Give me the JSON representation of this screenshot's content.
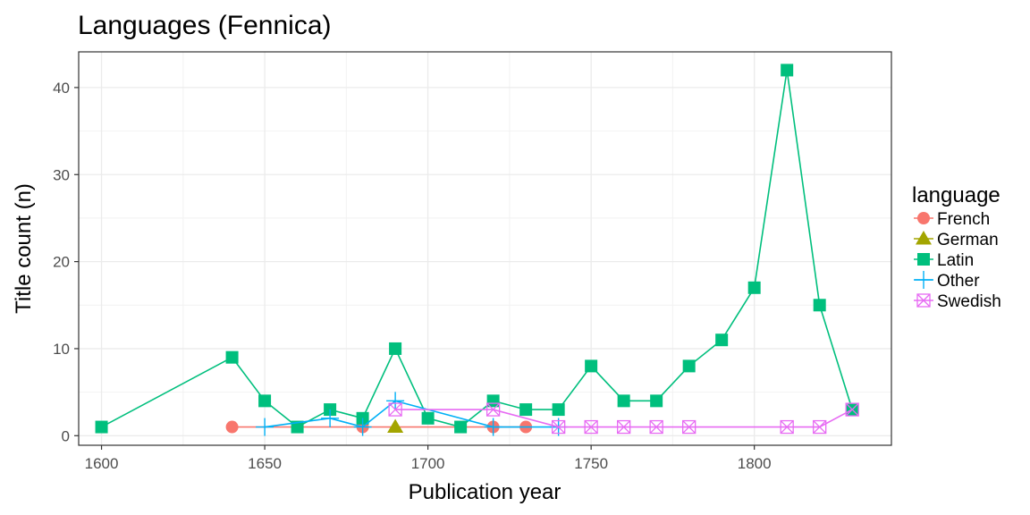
{
  "chart_data": {
    "type": "line",
    "title": "Languages (Fennica)",
    "xlabel": "Publication year",
    "ylabel": "Title count (n)",
    "xlim": [
      1593,
      1842
    ],
    "ylim": [
      -1.1,
      44.1
    ],
    "x_ticks": [
      1600,
      1650,
      1700,
      1750,
      1800
    ],
    "y_ticks": [
      0,
      10,
      20,
      30,
      40
    ],
    "grid": true,
    "legend": {
      "title": "language",
      "position": "right"
    },
    "series": [
      {
        "name": "French",
        "color": "#F8766D",
        "marker": "circle",
        "x": [
          1640,
          1680,
          1720,
          1730
        ],
        "y": [
          1,
          1,
          1,
          1
        ]
      },
      {
        "name": "German",
        "color": "#A3A500",
        "marker": "triangle",
        "x": [
          1690
        ],
        "y": [
          1
        ]
      },
      {
        "name": "Latin",
        "color": "#00BF7D",
        "marker": "square",
        "x": [
          1600,
          1640,
          1650,
          1660,
          1670,
          1680,
          1690,
          1700,
          1710,
          1720,
          1730,
          1740,
          1750,
          1760,
          1770,
          1780,
          1790,
          1800,
          1810,
          1820,
          1830
        ],
        "y": [
          1,
          9,
          4,
          1,
          3,
          2,
          10,
          2,
          1,
          4,
          3,
          3,
          8,
          4,
          4,
          8,
          11,
          17,
          42,
          15,
          3
        ]
      },
      {
        "name": "Other",
        "color": "#00B0F6",
        "marker": "plus",
        "x": [
          1650,
          1670,
          1680,
          1690,
          1720,
          1740
        ],
        "y": [
          1,
          2,
          1,
          4,
          1,
          1
        ]
      },
      {
        "name": "Swedish",
        "color": "#E76BF3",
        "marker": "boxcross",
        "x": [
          1690,
          1720,
          1740,
          1750,
          1760,
          1770,
          1780,
          1810,
          1820,
          1830
        ],
        "y": [
          3,
          3,
          1,
          1,
          1,
          1,
          1,
          1,
          1,
          3
        ]
      }
    ]
  }
}
